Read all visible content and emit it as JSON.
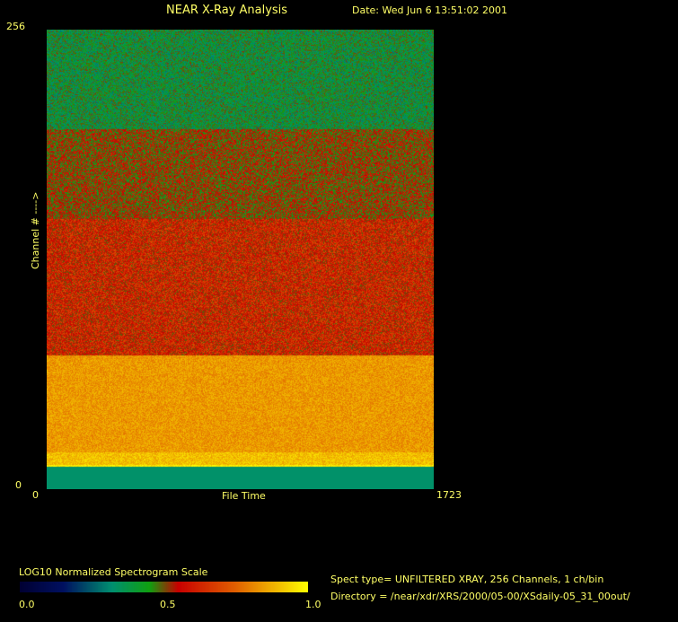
{
  "header": {
    "title": "NEAR X-Ray Analysis",
    "date": "Date: Wed Jun  6 13:51:02 2001"
  },
  "chart_data": {
    "type": "heatmap",
    "title": "NEAR X-Ray Analysis",
    "xlabel": "File Time",
    "ylabel": "Channel # ---->",
    "xlim": [
      0,
      1723
    ],
    "ylim": [
      0,
      256
    ],
    "x_tick_labels": [
      "0",
      "1723"
    ],
    "y_tick_labels": [
      "0",
      "256"
    ],
    "colorscale": {
      "title": "LOG10 Normalized Spectrogram Scale",
      "range": [
        0.0,
        1.0
      ],
      "tick_labels": [
        "0.0",
        "0.5",
        "1.0"
      ],
      "stops": [
        {
          "v": 0.0,
          "color": "#000033"
        },
        {
          "v": 0.15,
          "color": "#001060"
        },
        {
          "v": 0.32,
          "color": "#009070"
        },
        {
          "v": 0.45,
          "color": "#10a010"
        },
        {
          "v": 0.55,
          "color": "#c80000"
        },
        {
          "v": 0.75,
          "color": "#e06000"
        },
        {
          "v": 1.0,
          "color": "#ffff00"
        }
      ]
    },
    "channel_profile": [
      {
        "channels": [
          0,
          12
        ],
        "level": 0.33
      },
      {
        "channels": [
          13,
          13
        ],
        "level": 0.97
      },
      {
        "channels": [
          14,
          20
        ],
        "level": 0.9
      },
      {
        "channels": [
          21,
          74
        ],
        "level": 0.84
      },
      {
        "channels": [
          75,
          150
        ],
        "level": 0.6
      },
      {
        "channels": [
          151,
          200
        ],
        "level": 0.52
      },
      {
        "channels": [
          201,
          256
        ],
        "level": 0.4
      }
    ]
  },
  "info": {
    "spect_type": "Spect type= UNFILTERED XRAY,  256 Channels,  1 ch/bin",
    "directory": "Directory = /near/xdr/XRS/2000/05-00/XSdaily-05_31_00out/"
  }
}
